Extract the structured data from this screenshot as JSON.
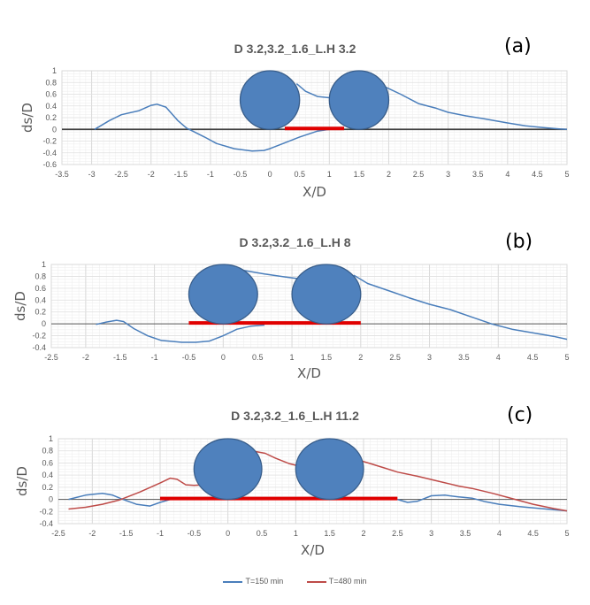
{
  "chart_data": [
    {
      "id": "a",
      "type": "line",
      "panel_label": "(a)",
      "title": "D 3.2,3.2_1.6_L.H 3.2",
      "xlabel": "X/D",
      "ylabel": "ds/D",
      "xlim": [
        -3.5,
        5
      ],
      "ylim": [
        -0.6,
        1
      ],
      "xticks": [
        "-3.5",
        "-3",
        "-2.5",
        "-2",
        "-1.5",
        "-1",
        "-0.5",
        "0",
        "0.5",
        "1",
        "1.5",
        "2",
        "2.5",
        "3",
        "3.5",
        "4",
        "4.5",
        "5"
      ],
      "yticks": [
        "1",
        "0.8",
        "0.6",
        "0.4",
        "0.2",
        "0",
        "-0.2",
        "-0.4",
        "-0.6"
      ],
      "grid": true,
      "piers": [
        {
          "x": 0,
          "diameter": 1
        },
        {
          "x": 1.5,
          "diameter": 1
        }
      ],
      "protection": {
        "from": 0.25,
        "to": 1.25
      },
      "series": [
        {
          "name": "T=150 min",
          "color": "#4a7ebb",
          "x": [
            -2.95,
            -2.7,
            -2.5,
            -2.2,
            -2.0,
            -1.9,
            -1.75,
            -1.55,
            -1.4,
            -1.3,
            -1.1,
            -0.9,
            -0.6,
            -0.3,
            -0.1,
            0.0,
            0.2,
            0.5,
            0.8,
            1.0
          ],
          "y": [
            0,
            0.15,
            0.25,
            0.32,
            0.41,
            0.43,
            0.38,
            0.15,
            0.02,
            -0.03,
            -0.13,
            -0.24,
            -0.33,
            -0.37,
            -0.36,
            -0.33,
            -0.25,
            -0.13,
            -0.03,
            0
          ]
        },
        {
          "name": "T=150 min",
          "color": "#4a7ebb",
          "x": [
            0.45,
            0.6,
            0.8,
            1.0
          ],
          "y": [
            0.78,
            0.65,
            0.56,
            0.54
          ]
        },
        {
          "name": "T=150 min",
          "color": "#4a7ebb",
          "x": [
            1.95,
            2.2,
            2.5,
            2.8,
            3.0,
            3.3,
            3.6,
            4.0,
            4.3,
            4.6,
            4.85,
            5.0
          ],
          "y": [
            0.72,
            0.6,
            0.44,
            0.36,
            0.29,
            0.23,
            0.18,
            0.11,
            0.06,
            0.03,
            0.01,
            0
          ]
        }
      ]
    },
    {
      "id": "b",
      "type": "line",
      "panel_label": "(b)",
      "title": "D 3.2,3.2_1.6_L.H 8",
      "xlabel": "X/D",
      "ylabel": "ds/D",
      "xlim": [
        -2.5,
        5
      ],
      "ylim": [
        -0.4,
        1
      ],
      "xticks": [
        "-2.5",
        "-2",
        "-1.5",
        "-1",
        "-0.5",
        "0",
        "0.5",
        "1",
        "1.5",
        "2",
        "2.5",
        "3",
        "3.5",
        "4",
        "4.5",
        "5"
      ],
      "yticks": [
        "1",
        "0.8",
        "0.6",
        "0.4",
        "0.2",
        "0",
        "-0.2",
        "-0.4"
      ],
      "grid": true,
      "piers": [
        {
          "x": 0,
          "diameter": 1
        },
        {
          "x": 1.5,
          "diameter": 1
        }
      ],
      "protection": {
        "from": -0.5,
        "to": 2.0
      },
      "series": [
        {
          "name": "T=150 min",
          "color": "#4a7ebb",
          "x": [
            -1.85,
            -1.7,
            -1.55,
            -1.45,
            -1.3,
            -1.1,
            -0.9,
            -0.6,
            -0.4,
            -0.2,
            0.0,
            0.2,
            0.4,
            0.6
          ],
          "y": [
            -0.01,
            0.03,
            0.06,
            0.04,
            -0.08,
            -0.2,
            -0.28,
            -0.31,
            -0.31,
            -0.29,
            -0.2,
            -0.09,
            -0.04,
            -0.02
          ]
        },
        {
          "name": "T=150 min",
          "color": "#4a7ebb",
          "x": [
            0.3,
            0.6,
            0.9,
            1.1
          ],
          "y": [
            0.9,
            0.84,
            0.79,
            0.76
          ]
        },
        {
          "name": "T=150 min",
          "color": "#4a7ebb",
          "x": [
            1.9,
            2.1,
            2.4,
            2.7,
            3.0,
            3.3,
            3.6,
            3.9,
            4.2,
            4.5,
            4.8,
            5.0
          ],
          "y": [
            0.82,
            0.68,
            0.56,
            0.44,
            0.33,
            0.24,
            0.12,
            0.0,
            -0.09,
            -0.15,
            -0.21,
            -0.26
          ]
        }
      ]
    },
    {
      "id": "c",
      "type": "line",
      "panel_label": "(c)",
      "title": "D 3.2,3.2_1.6_L.H 11.2",
      "xlabel": "X/D",
      "ylabel": "ds/D",
      "xlim": [
        -2.5,
        5
      ],
      "ylim": [
        -0.4,
        1
      ],
      "xticks": [
        "-2.5",
        "-2",
        "-1.5",
        "-1",
        "-0.5",
        "0",
        "0.5",
        "1",
        "1.5",
        "2",
        "2.5",
        "3",
        "3.5",
        "4",
        "4.5",
        "5"
      ],
      "yticks": [
        "1",
        "0.8",
        "0.6",
        "0.4",
        "0.2",
        "0",
        "-0.2",
        "-0.4"
      ],
      "grid": true,
      "piers": [
        {
          "x": 0,
          "diameter": 1
        },
        {
          "x": 1.5,
          "diameter": 1
        }
      ],
      "protection": {
        "from": -1.0,
        "to": 2.5
      },
      "series": [
        {
          "name": "T=150 min",
          "color": "#4a7ebb",
          "x": [
            -2.35,
            -2.1,
            -1.85,
            -1.7,
            -1.55,
            -1.35,
            -1.15,
            -1.0,
            -0.85
          ],
          "y": [
            0,
            0.07,
            0.1,
            0.07,
            0,
            -0.08,
            -0.11,
            -0.05,
            0
          ]
        },
        {
          "name": "T=150 min",
          "color": "#4a7ebb",
          "x": [
            2.5,
            2.65,
            2.8,
            3.0,
            3.2,
            3.4,
            3.6,
            3.8,
            4.0,
            4.3,
            4.6,
            4.8,
            5.0
          ],
          "y": [
            0,
            -0.05,
            -0.03,
            0.06,
            0.07,
            0.04,
            0.02,
            -0.04,
            -0.08,
            -0.12,
            -0.15,
            -0.17,
            -0.19
          ]
        },
        {
          "name": "T=480 min",
          "color": "#be4b48",
          "x": [
            -2.35,
            -2.1,
            -1.85,
            -1.6,
            -1.3,
            -1.0,
            -0.85,
            -0.75,
            -0.62,
            -0.5,
            -0.35
          ],
          "y": [
            -0.16,
            -0.13,
            -0.08,
            -0.01,
            0.12,
            0.27,
            0.35,
            0.33,
            0.24,
            0.23,
            0.24
          ]
        },
        {
          "name": "T=480 min",
          "color": "#be4b48",
          "x": [
            0.4,
            0.55,
            0.7,
            0.9,
            1.05
          ],
          "y": [
            0.79,
            0.76,
            0.68,
            0.59,
            0.55
          ]
        },
        {
          "name": "T=480 min",
          "color": "#be4b48",
          "x": [
            1.95,
            2.1,
            2.3,
            2.5,
            2.8,
            3.1,
            3.4,
            3.6,
            3.9,
            4.2,
            4.5,
            4.8,
            5.0
          ],
          "y": [
            0.64,
            0.59,
            0.52,
            0.45,
            0.38,
            0.3,
            0.22,
            0.18,
            0.1,
            0.01,
            -0.08,
            -0.15,
            -0.19
          ]
        }
      ]
    }
  ],
  "legend": [
    {
      "label": "T=150 min",
      "color": "#4a7ebb"
    },
    {
      "label": "T=480 min",
      "color": "#be4b48"
    }
  ]
}
